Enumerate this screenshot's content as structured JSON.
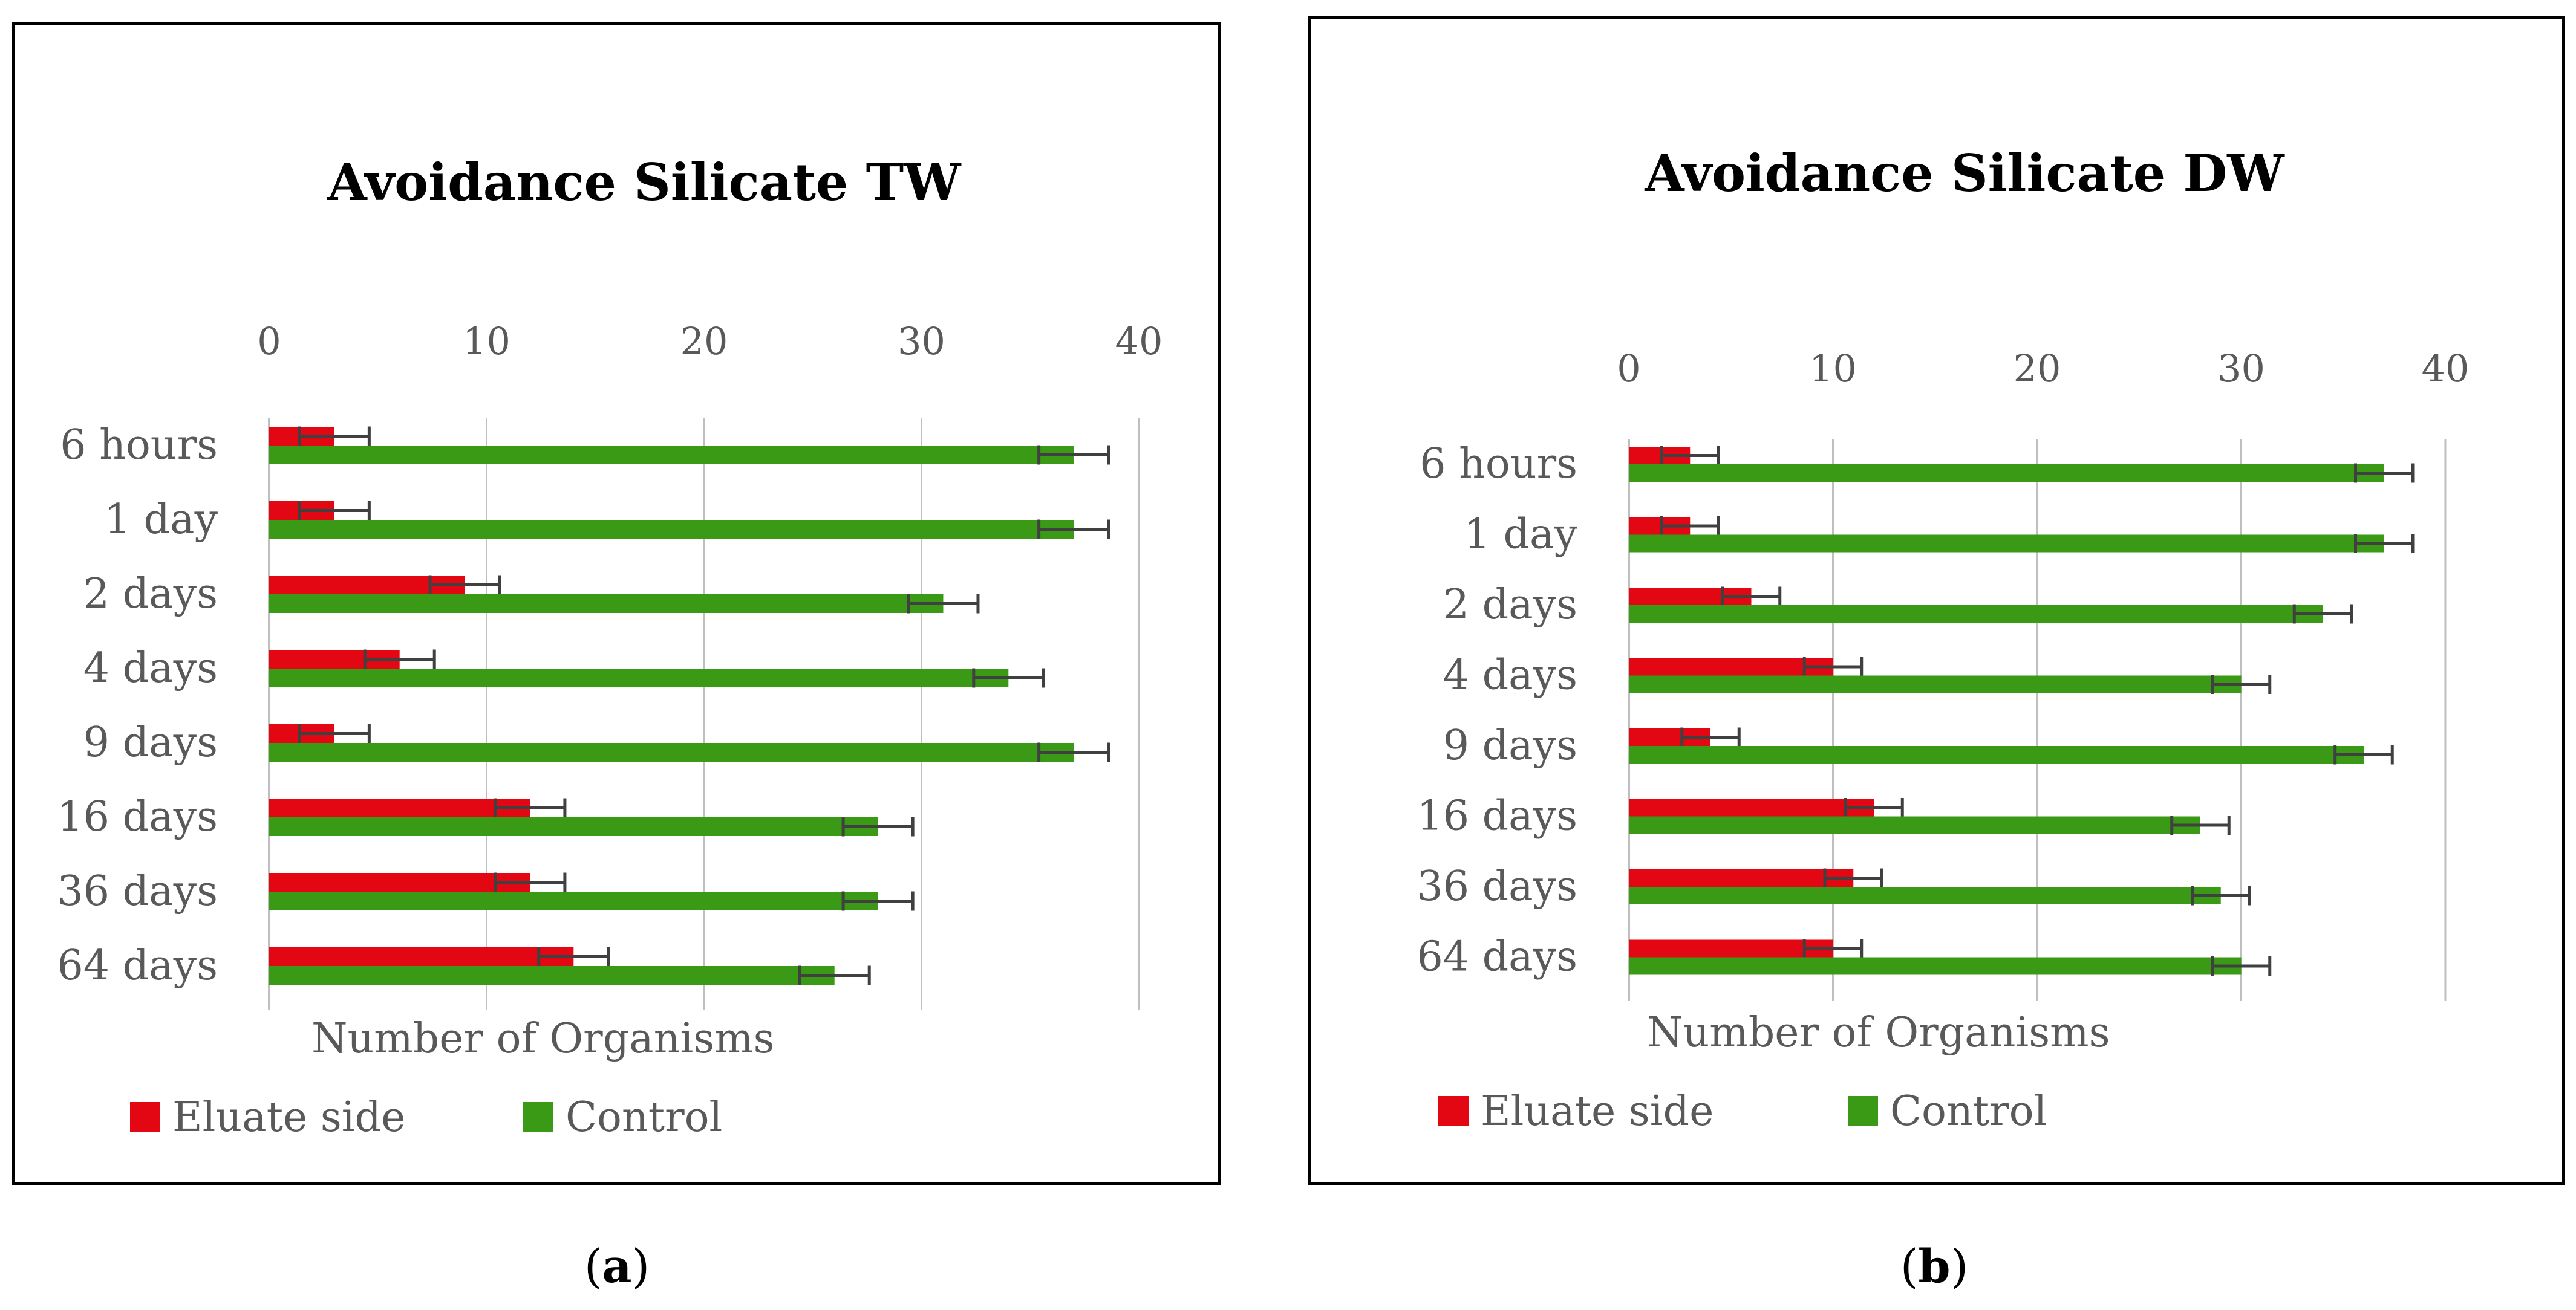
{
  "chart_data": [
    {
      "type": "bar",
      "orientation": "horizontal",
      "title": "Avoidance Silicate TW",
      "xlabel": "Number of Organisms",
      "ylabel": "",
      "xlim": [
        0,
        40
      ],
      "ticks": [
        0,
        10,
        20,
        30,
        40
      ],
      "grid": true,
      "legend_position": "bottom-left",
      "categories": [
        "6 hours",
        "1 day",
        "2 days",
        "4 days",
        "9 days",
        "16 days",
        "36 days",
        "64 days"
      ],
      "series": [
        {
          "name": "Eluate side",
          "color": "#e30613",
          "values": [
            3,
            3,
            9,
            6,
            3,
            12,
            12,
            14
          ],
          "errors": [
            1.6,
            1.6,
            1.6,
            1.6,
            1.6,
            1.6,
            1.6,
            1.6
          ]
        },
        {
          "name": "Control",
          "color": "#3a9a16",
          "values": [
            37,
            37,
            31,
            34,
            37,
            28,
            28,
            26
          ],
          "errors": [
            1.6,
            1.6,
            1.6,
            1.6,
            1.6,
            1.6,
            1.6,
            1.6
          ]
        }
      ],
      "caption": "a"
    },
    {
      "type": "bar",
      "orientation": "horizontal",
      "title": "Avoidance Silicate DW",
      "xlabel": "Number of Organisms",
      "ylabel": "",
      "xlim": [
        0,
        40
      ],
      "ticks": [
        0,
        10,
        20,
        30,
        40
      ],
      "grid": true,
      "legend_position": "bottom-left",
      "categories": [
        "6 hours",
        "1 day",
        "2 days",
        "4 days",
        "9 days",
        "16 days",
        "36 days",
        "64 days"
      ],
      "series": [
        {
          "name": "Eluate side",
          "color": "#e30613",
          "values": [
            3,
            3,
            6,
            10,
            4,
            12,
            11,
            10
          ],
          "errors": [
            1.4,
            1.4,
            1.4,
            1.4,
            1.4,
            1.4,
            1.4,
            1.4
          ]
        },
        {
          "name": "Control",
          "color": "#3a9a16",
          "values": [
            37,
            37,
            34,
            30,
            36,
            28,
            29,
            30
          ],
          "errors": [
            1.4,
            1.4,
            1.4,
            1.4,
            1.4,
            1.4,
            1.4,
            1.4
          ]
        }
      ],
      "caption": "b"
    }
  ]
}
